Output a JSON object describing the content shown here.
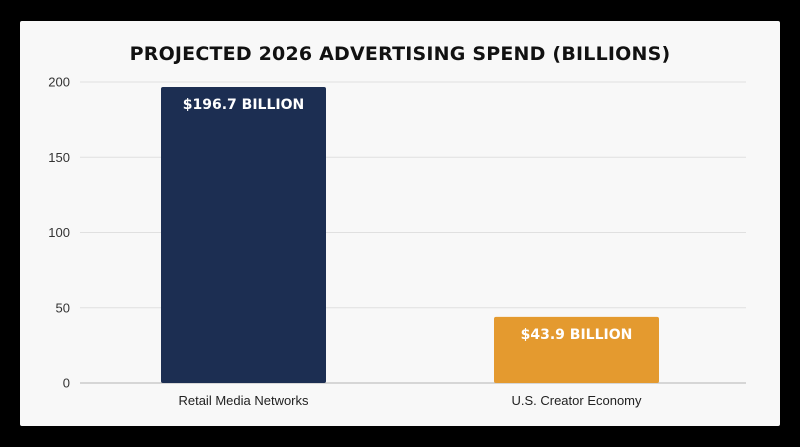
{
  "chart_data": {
    "type": "bar",
    "title": "PROJECTED 2026 ADVERTISING SPEND (BILLIONS)",
    "xlabel": "",
    "ylabel": "",
    "categories": [
      "Retail Media Networks",
      "U.S. Creator Economy"
    ],
    "values": [
      196.7,
      43.9
    ],
    "data_labels": [
      "$196.7 BILLION",
      "$43.9 BILLION"
    ],
    "yticks": [
      "0",
      "50",
      "100",
      "150",
      "200"
    ],
    "ylim": [
      0,
      200
    ],
    "grid": true,
    "colors": [
      "#1c2e52",
      "#e49a2f"
    ]
  }
}
